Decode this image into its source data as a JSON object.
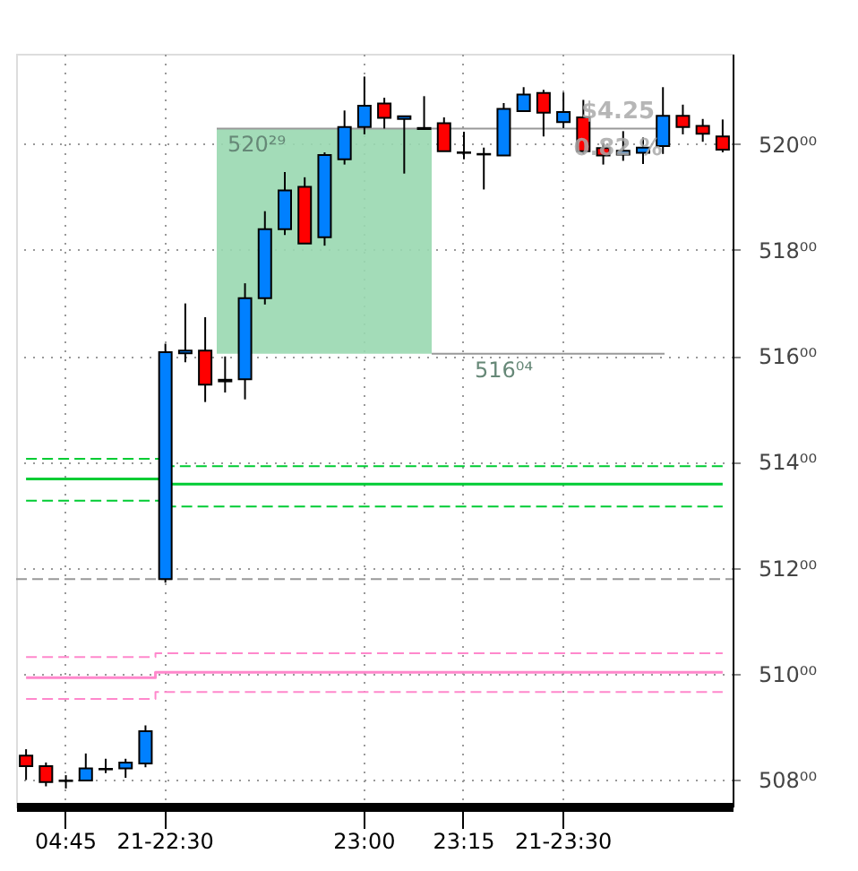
{
  "chart_data": {
    "type": "candlestick",
    "categories": [
      null,
      null,
      "04:45",
      null,
      null,
      null,
      null,
      "21-22:30",
      null,
      null,
      null,
      null,
      null,
      null,
      null,
      null,
      null,
      "23:00",
      null,
      null,
      null,
      null,
      "23:15",
      null,
      null,
      null,
      null,
      "21-23:30",
      null,
      null,
      null,
      null,
      null,
      null,
      null,
      null
    ],
    "ohlc": [
      [
        508.46,
        508.58,
        508.0,
        508.26
      ],
      [
        508.26,
        508.33,
        507.88,
        507.96
      ],
      [
        507.98,
        508.09,
        507.84,
        507.99
      ],
      [
        507.99,
        508.5,
        507.99,
        508.22
      ],
      [
        508.2,
        508.4,
        508.13,
        508.21
      ],
      [
        508.22,
        508.4,
        508.04,
        508.33
      ],
      [
        508.31,
        509.03,
        508.24,
        508.92
      ],
      [
        511.79,
        516.23,
        511.72,
        516.07
      ],
      [
        516.05,
        516.99,
        515.88,
        516.1
      ],
      [
        516.1,
        516.73,
        515.13,
        515.46
      ],
      [
        515.55,
        515.99,
        515.31,
        515.52
      ],
      [
        515.56,
        517.37,
        515.18,
        517.09
      ],
      [
        517.09,
        518.73,
        516.97,
        518.39
      ],
      [
        518.39,
        519.47,
        518.28,
        519.12
      ],
      [
        519.19,
        519.37,
        518.12,
        518.12
      ],
      [
        518.24,
        519.84,
        518.08,
        519.79
      ],
      [
        519.71,
        520.63,
        519.61,
        520.32
      ],
      [
        520.32,
        521.27,
        520.18,
        520.72
      ],
      [
        520.76,
        520.87,
        520.29,
        520.49
      ],
      [
        520.47,
        520.53,
        519.44,
        520.52
      ],
      [
        520.28,
        520.9,
        520.28,
        520.3
      ],
      [
        520.39,
        520.5,
        519.86,
        519.86
      ],
      [
        519.84,
        520.23,
        519.71,
        519.83
      ],
      [
        519.81,
        519.93,
        519.14,
        519.8
      ],
      [
        519.78,
        520.77,
        519.78,
        520.66
      ],
      [
        520.62,
        521.07,
        520.62,
        520.93
      ],
      [
        520.96,
        521.02,
        520.14,
        520.59
      ],
      [
        520.41,
        520.97,
        520.3,
        520.6
      ],
      [
        520.5,
        520.83,
        519.81,
        519.86
      ],
      [
        519.92,
        520.01,
        519.61,
        519.78
      ],
      [
        519.8,
        520.24,
        519.68,
        519.87
      ],
      [
        519.83,
        520.12,
        519.62,
        519.93
      ],
      [
        519.96,
        521.07,
        519.81,
        520.53
      ],
      [
        520.53,
        520.74,
        520.18,
        520.32
      ],
      [
        520.34,
        520.47,
        520.04,
        520.19
      ],
      [
        520.14,
        520.46,
        519.84,
        519.89
      ]
    ],
    "series": [
      {
        "type": "line",
        "color": "#00cc33",
        "line_style": "dashed",
        "values": [
          514.06,
          514.06,
          514.06,
          514.06,
          514.06,
          514.06,
          514.06,
          null,
          513.92,
          513.92,
          513.92,
          513.92,
          513.92,
          513.92,
          513.92,
          513.92,
          513.92,
          513.92,
          513.92,
          513.92,
          513.92,
          513.92,
          513.92,
          513.92,
          513.92,
          513.92,
          513.92,
          513.92,
          513.92,
          513.92,
          513.92,
          513.92,
          513.92,
          513.92,
          513.92,
          513.92
        ]
      },
      {
        "type": "line",
        "color": "#00cc33",
        "line_style": "solid",
        "values": [
          513.68,
          513.68,
          513.68,
          513.68,
          513.68,
          513.68,
          513.68,
          null,
          513.58,
          513.58,
          513.58,
          513.58,
          513.58,
          513.58,
          513.58,
          513.58,
          513.58,
          513.58,
          513.58,
          513.58,
          513.58,
          513.58,
          513.58,
          513.58,
          513.58,
          513.58,
          513.58,
          513.58,
          513.58,
          513.58,
          513.58,
          513.58,
          513.58,
          513.58,
          513.58,
          513.58
        ]
      },
      {
        "type": "line",
        "color": "#00cc33",
        "line_style": "dashed",
        "values": [
          513.27,
          513.27,
          513.27,
          513.27,
          513.27,
          513.27,
          513.27,
          null,
          513.16,
          513.16,
          513.16,
          513.16,
          513.16,
          513.16,
          513.16,
          513.16,
          513.16,
          513.16,
          513.16,
          513.16,
          513.16,
          513.16,
          513.16,
          513.16,
          513.16,
          513.16,
          513.16,
          513.16,
          513.16,
          513.16,
          513.16,
          513.16,
          513.16,
          513.16,
          513.16,
          513.16
        ]
      },
      {
        "type": "line",
        "color": "#ff88cc",
        "line_style": "dashed",
        "values": [
          510.32,
          510.32,
          510.32,
          510.32,
          510.32,
          510.32,
          510.32,
          510.39,
          510.39,
          510.39,
          510.39,
          510.39,
          510.39,
          510.39,
          510.39,
          510.39,
          510.39,
          510.39,
          510.39,
          510.39,
          510.39,
          510.39,
          510.39,
          510.39,
          510.39,
          510.39,
          510.39,
          510.39,
          510.39,
          510.39,
          510.39,
          510.39,
          510.39,
          510.39,
          510.39,
          510.39
        ]
      },
      {
        "type": "line",
        "color": "#ff88cc",
        "line_style": "solid",
        "values": [
          509.93,
          509.93,
          509.93,
          509.93,
          509.93,
          509.93,
          509.93,
          510.03,
          510.03,
          510.03,
          510.03,
          510.03,
          510.03,
          510.03,
          510.03,
          510.03,
          510.03,
          510.03,
          510.03,
          510.03,
          510.03,
          510.03,
          510.03,
          510.03,
          510.03,
          510.03,
          510.03,
          510.03,
          510.03,
          510.03,
          510.03,
          510.03,
          510.03,
          510.03,
          510.03,
          510.03
        ]
      },
      {
        "type": "line",
        "color": "#ff88cc",
        "line_style": "dashed",
        "values": [
          509.53,
          509.53,
          509.53,
          509.53,
          509.53,
          509.53,
          509.53,
          509.66,
          509.66,
          509.66,
          509.66,
          509.66,
          509.66,
          509.66,
          509.66,
          509.66,
          509.66,
          509.66,
          509.66,
          509.66,
          509.66,
          509.66,
          509.66,
          509.66,
          509.66,
          509.66,
          509.66,
          509.66,
          509.66,
          509.66,
          509.66,
          509.66,
          509.66,
          509.66,
          509.66,
          509.66
        ]
      }
    ],
    "ylim": [
      507.5,
      521.7
    ],
    "yticks": [
      {
        "value": 508,
        "label": "508⁰⁰"
      },
      {
        "value": 510,
        "label": "510⁰⁰"
      },
      {
        "value": 512,
        "label": "512⁰⁰"
      },
      {
        "value": 514,
        "label": "514⁰⁰"
      },
      {
        "value": 516,
        "label": "516⁰⁰"
      },
      {
        "value": 518,
        "label": "518⁰⁰"
      },
      {
        "value": 520,
        "label": "520⁰⁰"
      }
    ],
    "ref_lines": [
      {
        "axis": "y",
        "value": 511.79,
        "color": "#999999",
        "line_style": "dashed"
      },
      {
        "axis": "y",
        "value": 520.29,
        "label": "520²⁹",
        "color": "#999999",
        "line_style": "solid"
      },
      {
        "axis": "y",
        "value": 516.04,
        "label": "516⁰⁴",
        "color": "#999999",
        "line_style": "solid"
      }
    ],
    "bands": [
      {
        "axis": "y",
        "from": 516.04,
        "to": 520.29,
        "color": "#99d8b0"
      }
    ],
    "annotations": [
      "$4.25",
      "0.82 %"
    ],
    "grid": true
  }
}
